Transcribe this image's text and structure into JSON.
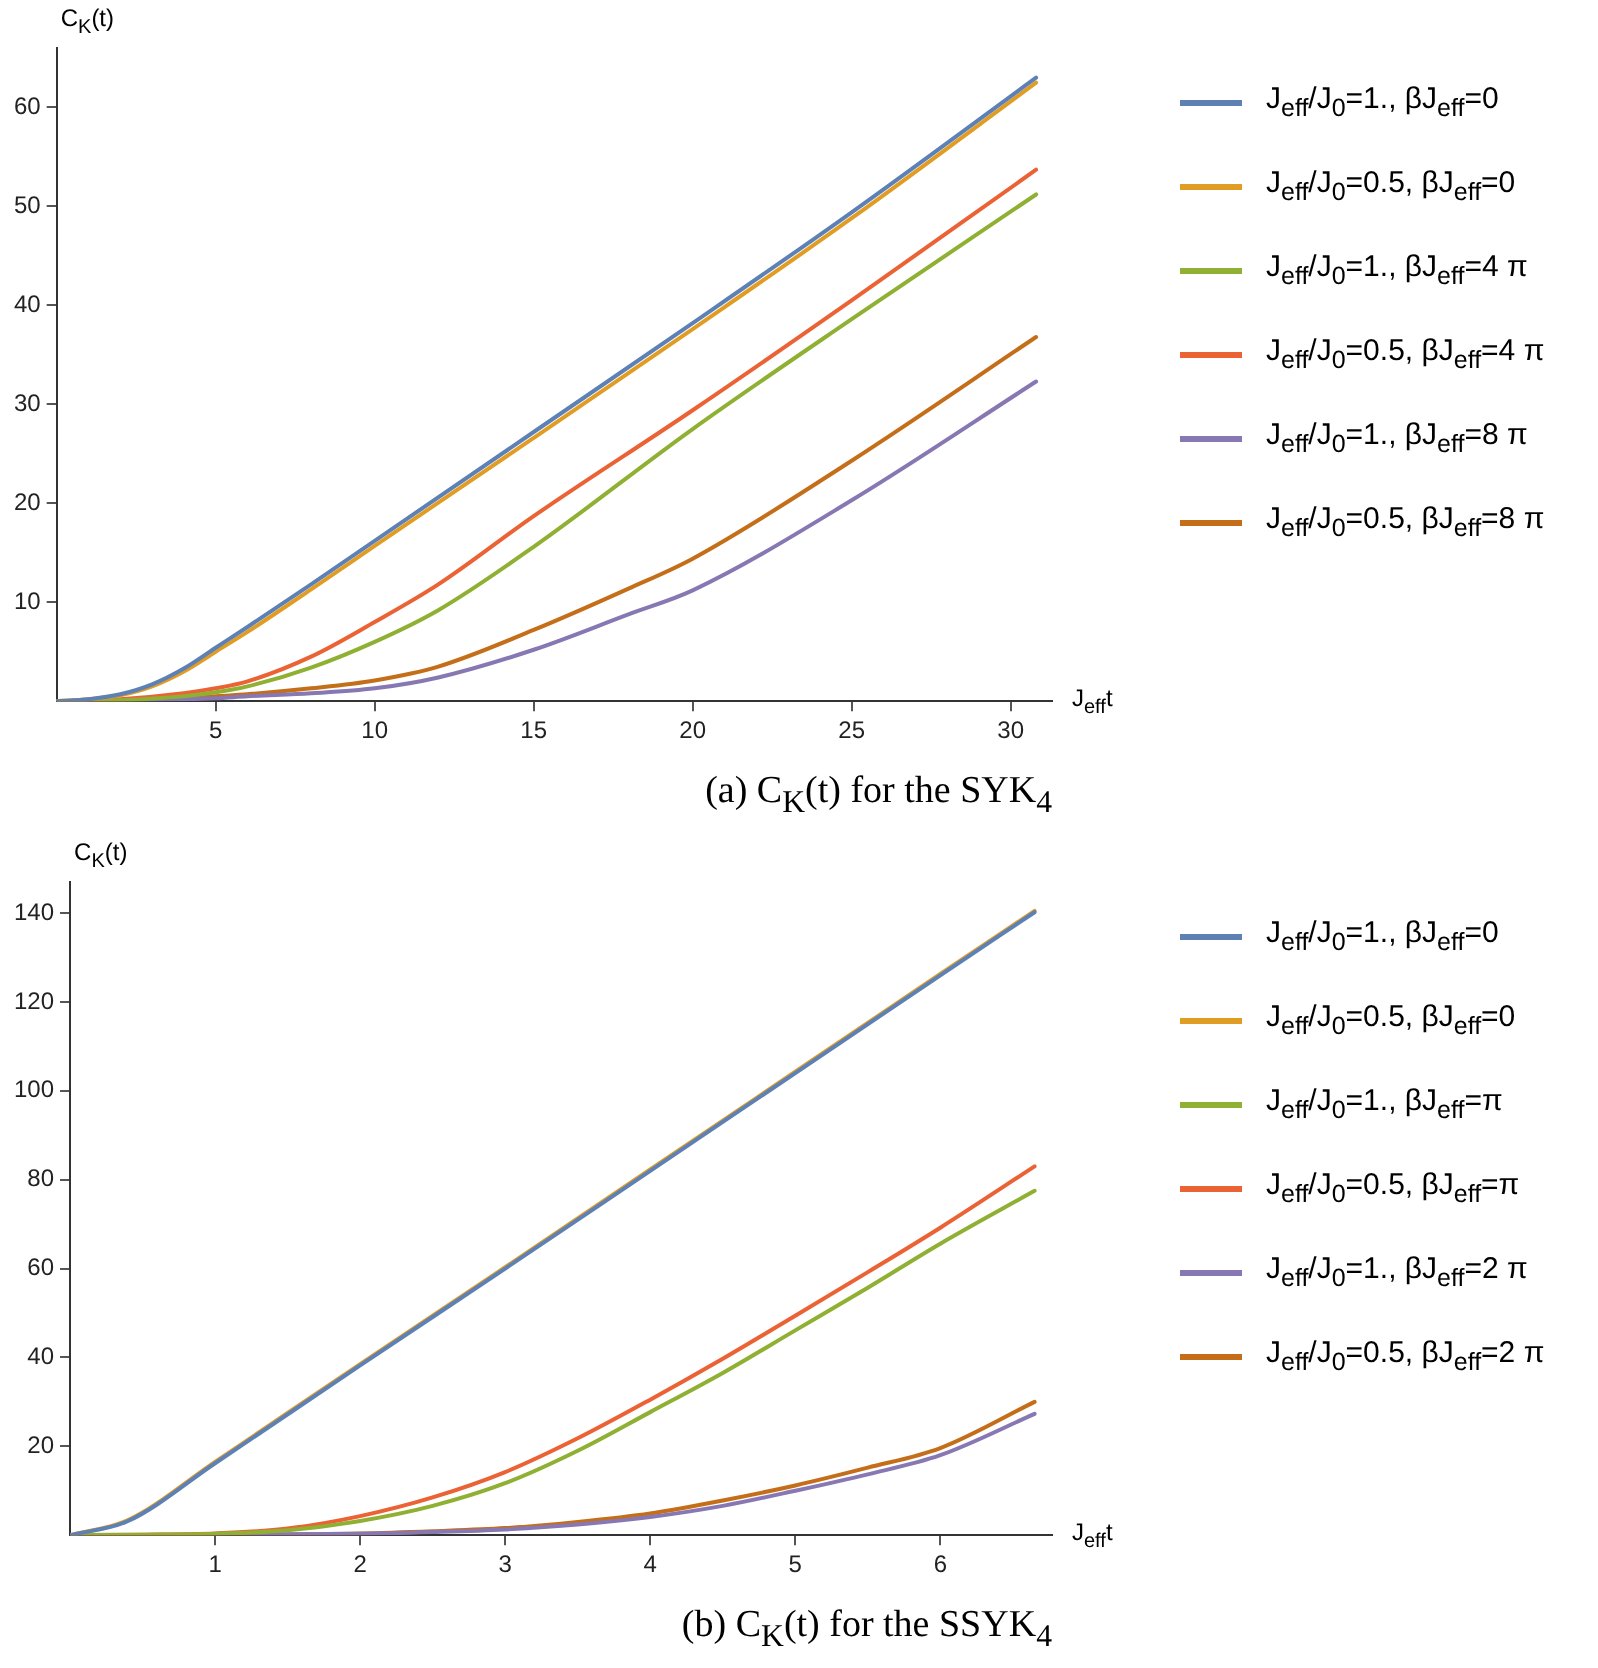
{
  "chart_data": [
    {
      "type": "line",
      "xlabel": "J$_{eff}$t",
      "ylabel": "C$_{K}$(t)",
      "annotations": [
        "(a) C$_{K}$(t) for the SYK$_{4}$"
      ],
      "xlim": [
        0,
        31.3
      ],
      "ylim": [
        0,
        66
      ],
      "xticks": [
        5,
        10,
        15,
        20,
        25,
        30
      ],
      "yticks": [
        10,
        20,
        30,
        40,
        50,
        60
      ],
      "grid": false,
      "legend": "right",
      "marker": "none",
      "line_style": "solid",
      "series": [
        {
          "name": "J$_{eff}$/J$_{0}$=1.,  βJ$_{eff}$=0",
          "color": "#5e81b5",
          "x": [
            0,
            1,
            2,
            3,
            4,
            5,
            6,
            8,
            10,
            15,
            20,
            25,
            30.8
          ],
          "values": [
            0,
            0.2,
            0.7,
            1.7,
            3.3,
            5.4,
            7.5,
            11.8,
            16.2,
            27.2,
            38.2,
            49.4,
            63
          ]
        },
        {
          "name": "J$_{eff}$/J$_{0}$=0.5,  βJ$_{eff}$=0",
          "color": "#e19c24",
          "x": [
            0,
            1,
            2,
            3,
            4,
            5,
            6,
            8,
            10,
            15,
            20,
            25,
            30.8
          ],
          "values": [
            0,
            0.2,
            0.6,
            1.5,
            3.0,
            5.0,
            7.0,
            11.3,
            15.7,
            26.6,
            37.6,
            48.8,
            62.5
          ]
        },
        {
          "name": "J$_{eff}$/J$_{0}$=1.,  βJ$_{eff}$=4 π",
          "color": "#8fb032",
          "x": [
            0,
            2,
            4,
            5,
            6,
            8,
            10,
            12,
            15,
            20,
            25,
            30.8
          ],
          "values": [
            0,
            0.1,
            0.5,
            0.9,
            1.5,
            3.4,
            6.0,
            9.2,
            15.6,
            27.5,
            38.6,
            51.2
          ]
        },
        {
          "name": "J$_{eff}$/J$_{0}$=0.5,  βJ$_{eff}$=4 π",
          "color": "#eb6235",
          "x": [
            0,
            2,
            4,
            5,
            6,
            8,
            10,
            12,
            15,
            20,
            25,
            30.8
          ],
          "values": [
            0,
            0.2,
            0.8,
            1.3,
            2.0,
            4.5,
            8.0,
            11.8,
            18.7,
            29.4,
            40.5,
            53.7
          ]
        },
        {
          "name": "J$_{eff}$/J$_{0}$=1.,  βJ$_{eff}$=8 π",
          "color": "#8778b3",
          "x": [
            0,
            2,
            4,
            5,
            6,
            8,
            10,
            12,
            15,
            18,
            20,
            25,
            30.8
          ],
          "values": [
            0,
            0.1,
            0.2,
            0.3,
            0.5,
            0.8,
            1.3,
            2.4,
            5.2,
            8.8,
            11.2,
            20.3,
            32.3
          ]
        },
        {
          "name": "J$_{eff}$/J$_{0}$=0.5,  βJ$_{eff}$=8 π",
          "color": "#c56e1a",
          "x": [
            0,
            2,
            4,
            5,
            6,
            8,
            10,
            12,
            15,
            18,
            20,
            25,
            30.8
          ],
          "values": [
            0,
            0.1,
            0.3,
            0.5,
            0.7,
            1.3,
            2.1,
            3.5,
            7.2,
            11.4,
            14.4,
            24.3,
            36.8
          ]
        }
      ]
    },
    {
      "type": "line",
      "xlabel": "J$_{eff}$t",
      "ylabel": "C$_{K}$(t)",
      "annotations": [
        "(b) C$_{K}$(t) for the SSYK$_{4}$"
      ],
      "xlim": [
        0,
        6.77
      ],
      "ylim": [
        0,
        147
      ],
      "xticks": [
        1,
        2,
        3,
        4,
        5,
        6
      ],
      "yticks": [
        20,
        40,
        60,
        80,
        100,
        120,
        140
      ],
      "grid": false,
      "legend": "right",
      "marker": "none",
      "line_style": "solid",
      "series": [
        {
          "name": "J$_{eff}$/J$_{0}$=1.,  βJ$_{eff}$=0",
          "color": "#5e81b5",
          "x": [
            0,
            0.4,
            1,
            2,
            3,
            4,
            5,
            6,
            6.65
          ],
          "values": [
            0,
            3.2,
            16.2,
            38.2,
            60,
            82,
            104,
            126,
            140.2
          ]
        },
        {
          "name": "J$_{eff}$/J$_{0}$=0.5,  βJ$_{eff}$=0",
          "color": "#e19c24",
          "x": [
            0,
            0.4,
            1,
            2,
            3,
            4,
            5,
            6,
            6.65
          ],
          "values": [
            0,
            3.4,
            16.5,
            38.5,
            60.3,
            82.3,
            104.3,
            126.3,
            140.5
          ]
        },
        {
          "name": "J$_{eff}$/J$_{0}$=1.,  βJ$_{eff}$=π",
          "color": "#8fb032",
          "x": [
            0,
            0.5,
            1,
            1.5,
            2,
            2.5,
            3,
            3.5,
            4,
            4.5,
            5,
            5.5,
            6,
            6.65
          ],
          "values": [
            0,
            0.1,
            0.3,
            1.1,
            3.2,
            6.6,
            11.7,
            19,
            27.7,
            36.5,
            46.1,
            55.7,
            65.6,
            77.5
          ]
        },
        {
          "name": "J$_{eff}$/J$_{0}$=0.5,  βJ$_{eff}$=π",
          "color": "#eb6235",
          "x": [
            0,
            0.5,
            1,
            1.5,
            2,
            2.5,
            3,
            3.5,
            4,
            4.5,
            5,
            5.5,
            6,
            6.65
          ],
          "values": [
            0,
            0.1,
            0.4,
            1.5,
            4.3,
            8.5,
            14.2,
            21.8,
            30.5,
            39.7,
            49.4,
            59.2,
            69.2,
            83
          ]
        },
        {
          "name": "J$_{eff}$/J$_{0}$=1.,  βJ$_{eff}$=2 π",
          "color": "#8778b3",
          "x": [
            0,
            2,
            2.5,
            3,
            3.5,
            4,
            4.5,
            5,
            5.5,
            6,
            6.65
          ],
          "values": [
            0,
            0.3,
            0.7,
            1.3,
            2.4,
            4.1,
            6.6,
            10.0,
            13.7,
            18.0,
            27.3
          ]
        },
        {
          "name": "J$_{eff}$/J$_{0}$=0.5,  βJ$_{eff}$=2 π",
          "color": "#c56e1a",
          "x": [
            0,
            1,
            2,
            2.5,
            3,
            3.5,
            4,
            4.5,
            5,
            5.5,
            6,
            6.65
          ],
          "values": [
            0,
            0.1,
            0.4,
            0.9,
            1.6,
            3.0,
            4.9,
            7.8,
            11.2,
            15.2,
            19.6,
            30
          ]
        }
      ]
    }
  ]
}
